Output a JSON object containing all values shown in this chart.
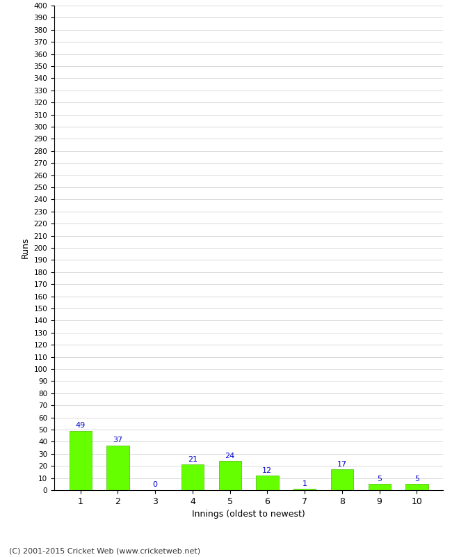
{
  "categories": [
    "1",
    "2",
    "3",
    "4",
    "5",
    "6",
    "7",
    "8",
    "9",
    "10"
  ],
  "values": [
    49,
    37,
    0,
    21,
    24,
    12,
    1,
    17,
    5,
    5
  ],
  "bar_color": "#66ff00",
  "bar_edge_color": "#44bb00",
  "xlabel": "Innings (oldest to newest)",
  "ylabel": "Runs",
  "ylim": [
    0,
    400
  ],
  "label_color": "#0000cc",
  "footer": "(C) 2001-2015 Cricket Web (www.cricketweb.net)",
  "background_color": "#ffffff",
  "grid_color": "#cccccc"
}
